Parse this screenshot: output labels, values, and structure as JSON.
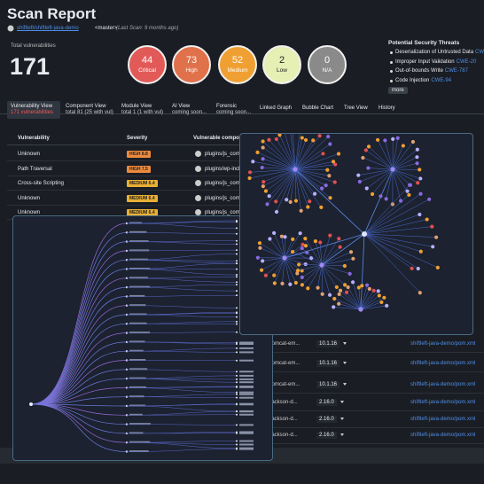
{
  "header": {
    "title": "Scan Report",
    "repo": "shiftleft/shiftleft-java-demo",
    "branch": "<master>",
    "last_scan": "(Last Scan: 9 months ago)"
  },
  "summary": {
    "label": "Total vulnerabilities",
    "total": 171,
    "severities": [
      {
        "count": 44,
        "label": "Critical"
      },
      {
        "count": 73,
        "label": "High"
      },
      {
        "count": 52,
        "label": "Medium"
      },
      {
        "count": 2,
        "label": "Low"
      },
      {
        "count": 0,
        "label": "N/A"
      }
    ]
  },
  "threats": {
    "title": "Potential Security Threats",
    "items": [
      {
        "name": "Deserialization of Untrusted Data",
        "cwe": "CWE-502"
      },
      {
        "name": "Improper Input Validation",
        "cwe": "CWE-20"
      },
      {
        "name": "Out-of-bounds Write",
        "cwe": "CWE-787"
      },
      {
        "name": "Code Injection",
        "cwe": "CWE-94"
      }
    ],
    "more": "more"
  },
  "tabs": [
    {
      "label": "Vulnerability View",
      "sub": "171 vulnerabilities"
    },
    {
      "label": "Component View",
      "sub": "total 81 (25 with vul)"
    },
    {
      "label": "Module View",
      "sub": "total 1 (1 with vul)"
    },
    {
      "label": "AI View",
      "sub": "coming soon..."
    },
    {
      "label": "Forensic",
      "sub": "coming soon..."
    },
    {
      "label": "Linked Graph"
    },
    {
      "label": "Bubble Chart"
    },
    {
      "label": "Tree View"
    },
    {
      "label": "History"
    }
  ],
  "table": {
    "headers": [
      "Vulnerability",
      "Severity",
      "Vulnerable component"
    ],
    "rows": [
      [
        "Unknown",
        "HIGH 8.8",
        "plugins/js_comp..."
      ],
      [
        "Path Traversal",
        "HIGH 7.5",
        "plugins/wp-inclu..."
      ],
      [
        "Cross-site Scripting",
        "MEDIUM 6.4",
        "plugins/js_comp..."
      ],
      [
        "Unknown",
        "MEDIUM 6.4",
        "plugins/js_comp..."
      ],
      [
        "Unknown",
        "MEDIUM 6.4",
        "plugins/js_comp..."
      ]
    ]
  },
  "dependency_rows": [
    [
      "tomcat-em...",
      "10.1.16",
      "shiftleft-java-demo/pom.xml"
    ],
    [
      "tomcat-em...",
      "10.1.16",
      "shiftleft-java-demo/pom.xml"
    ],
    [
      "tomcat-em...",
      "10.1.16",
      "shiftleft-java-demo/pom.xml"
    ],
    [
      "jackson-d...",
      "2.16.0",
      "shiftleft-java-demo/pom.xml"
    ],
    [
      "jackson-d...",
      "2.16.0",
      "shiftleft-java-demo/pom.xml"
    ],
    [
      "jackson-d...",
      "2.16.0",
      "shiftleft-java-demo/pom.xml"
    ]
  ]
}
